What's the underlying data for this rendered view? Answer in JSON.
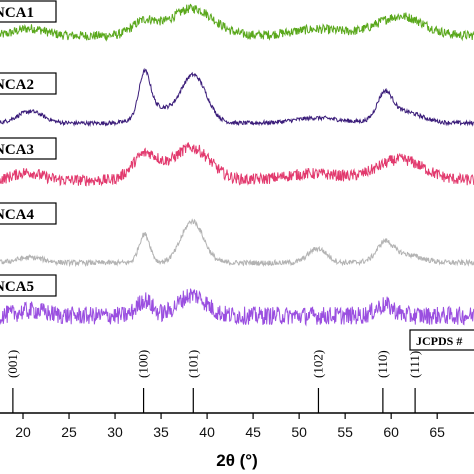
{
  "chart_data": {
    "type": "line",
    "xlabel": "2θ (°)",
    "xlim": [
      17.5,
      69
    ],
    "x_ticks": [
      20,
      25,
      30,
      35,
      40,
      45,
      50,
      55,
      60,
      65
    ],
    "x_tick_labels": [
      "20",
      "25",
      "30",
      "35",
      "40",
      "45",
      "50",
      "55",
      "60",
      "65"
    ],
    "grid": false,
    "series": [
      {
        "name": "NCA1",
        "color": "#5aa81c",
        "baseline": 0.55,
        "noise": 0.18,
        "peaks": [
          {
            "x": 20.8,
            "height": 0.28,
            "width": 1.6
          },
          {
            "x": 33.2,
            "height": 0.55,
            "width": 1.3
          },
          {
            "x": 38.4,
            "height": 1.05,
            "width": 2.3
          },
          {
            "x": 52.0,
            "height": 0.25,
            "width": 2.8
          },
          {
            "x": 61.0,
            "height": 0.75,
            "width": 2.5
          }
        ]
      },
      {
        "name": "NCA2",
        "color": "#3b1d7a",
        "baseline": 0.15,
        "noise": 0.08,
        "peaks": [
          {
            "x": 20.8,
            "height": 0.45,
            "width": 1.4
          },
          {
            "x": 33.2,
            "height": 1.55,
            "width": 0.6
          },
          {
            "x": 34.3,
            "height": 0.6,
            "width": 1.5
          },
          {
            "x": 38.5,
            "height": 1.85,
            "width": 1.4
          },
          {
            "x": 52.0,
            "height": 0.2,
            "width": 2.5
          },
          {
            "x": 59.3,
            "height": 0.95,
            "width": 0.8
          },
          {
            "x": 61.2,
            "height": 0.45,
            "width": 2.0
          }
        ]
      },
      {
        "name": "NCA3",
        "color": "#e23a6e",
        "baseline": 0.3,
        "noise": 0.22,
        "peaks": [
          {
            "x": 20.5,
            "height": 0.3,
            "width": 1.5
          },
          {
            "x": 33.3,
            "height": 1.0,
            "width": 1.4
          },
          {
            "x": 38.3,
            "height": 1.25,
            "width": 2.0
          },
          {
            "x": 51.5,
            "height": 0.25,
            "width": 3.0
          },
          {
            "x": 61.0,
            "height": 0.8,
            "width": 2.5
          }
        ]
      },
      {
        "name": "NCA4",
        "color": "#b3b3b3",
        "baseline": 0.2,
        "noise": 0.1,
        "peaks": [
          {
            "x": 20.8,
            "height": 0.2,
            "width": 1.5
          },
          {
            "x": 33.2,
            "height": 1.1,
            "width": 0.6
          },
          {
            "x": 38.4,
            "height": 1.6,
            "width": 1.2
          },
          {
            "x": 52.0,
            "height": 0.55,
            "width": 1.0
          },
          {
            "x": 59.3,
            "height": 0.6,
            "width": 0.8
          },
          {
            "x": 61.0,
            "height": 0.35,
            "width": 2.0
          }
        ]
      },
      {
        "name": "NCA5",
        "color": "#9a4fe0",
        "baseline": 0.55,
        "noise": 0.35,
        "peaks": [
          {
            "x": 21.0,
            "height": 0.2,
            "width": 1.5
          },
          {
            "x": 33.2,
            "height": 0.6,
            "width": 0.8
          },
          {
            "x": 38.4,
            "height": 0.8,
            "width": 1.5
          },
          {
            "x": 59.3,
            "height": 0.4,
            "width": 1.0
          }
        ]
      }
    ],
    "reference": {
      "label": "JCPDS #",
      "lines": [
        {
          "x": 18.9,
          "hkl": "(001)"
        },
        {
          "x": 33.1,
          "hkl": "(100)"
        },
        {
          "x": 38.5,
          "hkl": "(101)"
        },
        {
          "x": 52.1,
          "hkl": "(102)"
        },
        {
          "x": 59.1,
          "hkl": "(110)"
        },
        {
          "x": 62.6,
          "hkl": "(111)"
        }
      ]
    }
  }
}
